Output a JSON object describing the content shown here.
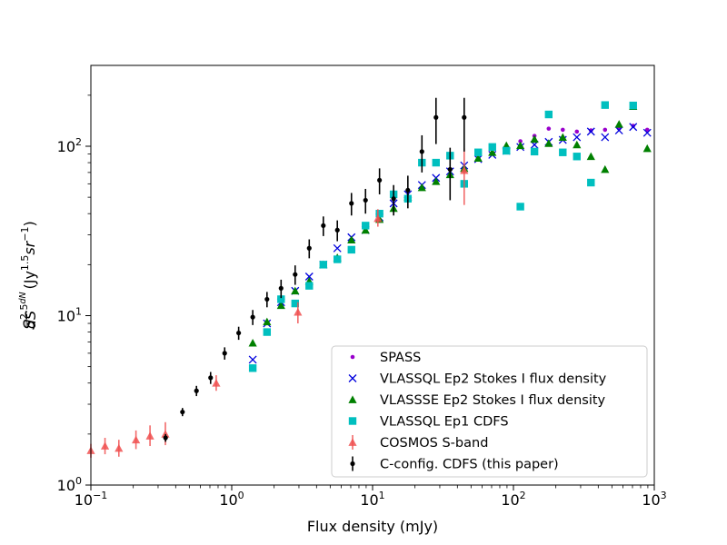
{
  "chart_data": {
    "type": "scatter",
    "xscale": "log",
    "yscale": "log",
    "xlim": [
      0.1,
      1000
    ],
    "ylim": [
      1,
      300
    ],
    "xlabel": "Flux density (mJy)",
    "ylabel": "S^{2.5} dN/dS (Jy^{1.5} sr^{-1})",
    "x_ticks": [
      {
        "value": 0.1,
        "base": "10",
        "exp": "−1"
      },
      {
        "value": 1,
        "base": "10",
        "exp": "0"
      },
      {
        "value": 10,
        "base": "10",
        "exp": "1"
      },
      {
        "value": 100,
        "base": "10",
        "exp": "2"
      },
      {
        "value": 1000,
        "base": "10",
        "exp": "3"
      }
    ],
    "y_ticks": [
      {
        "value": 1,
        "base": "10",
        "exp": "0"
      },
      {
        "value": 10,
        "base": "10",
        "exp": "1"
      },
      {
        "value": 100,
        "base": "10",
        "exp": "2"
      }
    ],
    "legend_position": "lower-right",
    "series": [
      {
        "name": "SPASS",
        "marker": "dot",
        "color": "#9900cc",
        "x": [
          112,
          141,
          178,
          224,
          282,
          355,
          447,
          562,
          708,
          891
        ],
        "y": [
          107,
          115,
          127,
          125,
          122,
          124,
          125,
          127,
          132,
          125
        ]
      },
      {
        "name": "VLASSQL Ep2 Stokes I flux density",
        "marker": "x",
        "color": "#0000dd",
        "x": [
          1.41,
          1.78,
          2.24,
          2.82,
          3.55,
          4.47,
          5.62,
          7.08,
          8.91,
          11.2,
          14.1,
          17.8,
          22.4,
          28.2,
          35.5,
          44.7,
          56.2,
          70.8,
          89.1,
          112,
          141,
          178,
          224,
          282,
          355,
          447,
          562,
          708,
          891
        ],
        "y": [
          5.5,
          9.0,
          12.0,
          14.0,
          17.0,
          20.0,
          25.0,
          29.0,
          32.0,
          38.0,
          46.0,
          52.0,
          59.0,
          65.0,
          71.0,
          77.0,
          84.0,
          89.0,
          94.0,
          99.0,
          102.0,
          106.0,
          109.0,
          113.0,
          122.0,
          113.0,
          124.0,
          130.0,
          120.0
        ]
      },
      {
        "name": "VLASSSE Ep2 Stokes I flux density",
        "marker": "triangle",
        "color": "#008000",
        "x": [
          1.41,
          1.78,
          2.24,
          2.82,
          3.55,
          4.47,
          5.62,
          7.08,
          8.91,
          11.2,
          14.1,
          17.8,
          22.4,
          28.2,
          35.5,
          44.7,
          56.2,
          70.8,
          89.1,
          112,
          141,
          178,
          224,
          282,
          355,
          447,
          562,
          708,
          891
        ],
        "y": [
          6.9,
          9.2,
          11.5,
          14.0,
          16.0,
          20.0,
          22.0,
          28.0,
          32.0,
          37.0,
          43.0,
          50.0,
          57.0,
          62.0,
          68.0,
          74.0,
          85.0,
          92.0,
          101.0,
          101.0,
          110.0,
          104.0,
          113.0,
          102.0,
          87.0,
          73.0,
          135.0,
          172.0,
          97.0
        ]
      },
      {
        "name": "VLASSQL Ep1 CDFS",
        "marker": "square",
        "color": "#00bfbf",
        "x": [
          1.41,
          1.78,
          2.24,
          2.82,
          3.55,
          4.47,
          5.62,
          7.08,
          8.91,
          11.2,
          14.1,
          17.8,
          22.4,
          28.2,
          35.5,
          44.7,
          56.2,
          70.8,
          89.1,
          112,
          141,
          178,
          224,
          282,
          355,
          447,
          708
        ],
        "y": [
          4.9,
          8.0,
          12.5,
          11.8,
          15.0,
          20.0,
          21.5,
          24.5,
          34.0,
          40.0,
          52.0,
          49.0,
          80.0,
          80.0,
          88.0,
          60.0,
          92.0,
          99.0,
          94.0,
          44.0,
          93.0,
          154.0,
          92.0,
          87.0,
          61.0,
          175.0,
          174.0
        ]
      },
      {
        "name": "COSMOS S-band",
        "marker": "triangle",
        "color": "#f05050",
        "x": [
          0.1,
          0.126,
          0.158,
          0.209,
          0.263,
          0.338,
          0.776,
          2.95,
          10.9,
          44.7
        ],
        "y": [
          1.6,
          1.7,
          1.65,
          1.85,
          1.95,
          2.0,
          4.0,
          10.5,
          37.5,
          72.0
        ],
        "yerr_low": [
          0.15,
          0.18,
          0.18,
          0.22,
          0.25,
          0.28,
          0.4,
          1.5,
          4.0,
          27.0
        ],
        "yerr_high": [
          0.15,
          0.2,
          0.2,
          0.25,
          0.3,
          0.35,
          0.45,
          1.5,
          5.0,
          25.0
        ]
      },
      {
        "name": "C-config. CDFS (this paper)",
        "marker": "dot-errorbar",
        "color": "#000000",
        "x": [
          0.339,
          0.447,
          0.562,
          0.708,
          0.891,
          1.12,
          1.41,
          1.78,
          2.24,
          2.82,
          3.55,
          4.47,
          5.62,
          7.08,
          8.91,
          11.2,
          14.1,
          17.8,
          22.4,
          28.2,
          35.5,
          44.7
        ],
        "y": [
          1.9,
          2.7,
          3.6,
          4.3,
          6.0,
          7.9,
          9.8,
          12.5,
          14.5,
          17.5,
          25.0,
          34.0,
          32.0,
          46.0,
          48.0,
          63.0,
          49.0,
          55.0,
          93.0,
          148.0,
          73.0,
          148.0
        ],
        "yerr_low": [
          0.1,
          0.15,
          0.25,
          0.35,
          0.5,
          0.7,
          1.0,
          1.3,
          1.8,
          2.3,
          3.2,
          4.5,
          4.5,
          7.0,
          8.0,
          11.0,
          10.0,
          12.0,
          23.0,
          45.0,
          25.0,
          55.0
        ],
        "yerr_high": [
          0.1,
          0.15,
          0.25,
          0.35,
          0.5,
          0.7,
          1.0,
          1.3,
          1.8,
          2.3,
          3.2,
          4.5,
          4.5,
          7.0,
          8.0,
          11.0,
          10.0,
          12.0,
          23.0,
          45.0,
          25.0,
          45.0
        ]
      }
    ]
  }
}
